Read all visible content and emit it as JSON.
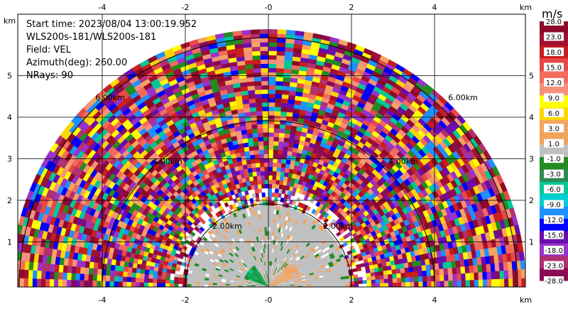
{
  "info": {
    "start_time": "Start time: 2023/08/04 13:00:19.952",
    "station": "WLS200s-181/WLS200s-181",
    "field": "Field: VEL",
    "azimuth": "Azimuth(deg): 260.00",
    "nrays": "NRays: 90"
  },
  "axes": {
    "x_ticks": [
      "-4",
      "-2",
      "-0",
      "2",
      "4"
    ],
    "y_ticks": [
      "1",
      "2",
      "3",
      "4",
      "5"
    ],
    "unit": "km"
  },
  "range_rings": [
    "2.00km",
    "4.00km",
    "6.00km"
  ],
  "colorbar": {
    "title": "m/s",
    "labels": [
      "28.0",
      "23.0",
      "18.0",
      "15.0",
      "12.0",
      "9.0",
      "6.0",
      "3.0",
      "1.0",
      "-1.0",
      "-3.0",
      "-6.0",
      "-9.0",
      "-12.0",
      "-15.0",
      "-18.0",
      "-23.0",
      "-28.0"
    ],
    "colors": [
      "#8b0a2a",
      "#a01030",
      "#c81e1e",
      "#e84848",
      "#f26b5b",
      "#f6907a",
      "#ffff00",
      "#ffd700",
      "#f4a460",
      "#f0a45a",
      "#c0c0c0",
      "#228b22",
      "#2e8b57",
      "#00c896",
      "#00ced1",
      "#1e90ff",
      "#0000ff",
      "#6a0dad",
      "#9932cc",
      "#b03070",
      "#8b0a55"
    ]
  },
  "chart_data": {
    "type": "heatmap",
    "title": "",
    "xlabel": "km",
    "ylabel": "km",
    "xlim": [
      -6,
      6
    ],
    "ylim": [
      0,
      6
    ],
    "range_rings_km": [
      2,
      4,
      6
    ],
    "field": "VEL",
    "units": "m/s"
  }
}
